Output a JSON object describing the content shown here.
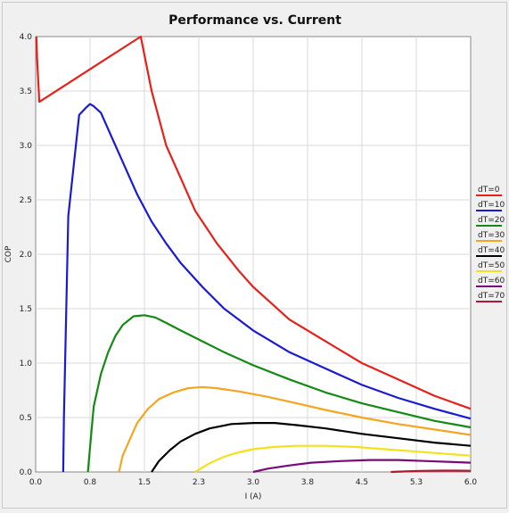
{
  "chart_data": {
    "type": "line",
    "title": "Performance vs. Current",
    "xlabel": "I (A)",
    "ylabel": "COP",
    "xlim": [
      0,
      6.0
    ],
    "ylim": [
      0,
      4.0
    ],
    "x_ticks": [
      "0.0",
      "0.8",
      "1.5",
      "2.3",
      "3.0",
      "3.8",
      "4.5",
      "5.3",
      "6.0"
    ],
    "y_ticks": [
      "0.0",
      "0.5",
      "1.0",
      "1.5",
      "2.0",
      "2.5",
      "3.0",
      "3.5",
      "4.0"
    ],
    "grid": true,
    "legend_position": "right",
    "series": [
      {
        "name": "dT=0",
        "color": "#e8201a",
        "points": [
          [
            0.01,
            4.0
          ],
          [
            0.02,
            3.8
          ],
          [
            0.05,
            3.4
          ],
          [
            1.45,
            4.0
          ],
          [
            1.6,
            3.5
          ],
          [
            1.8,
            3.0
          ],
          [
            2.0,
            2.7
          ],
          [
            2.2,
            2.4
          ],
          [
            2.5,
            2.1
          ],
          [
            2.8,
            1.85
          ],
          [
            3.0,
            1.7
          ],
          [
            3.5,
            1.4
          ],
          [
            4.0,
            1.2
          ],
          [
            4.5,
            1.0
          ],
          [
            5.0,
            0.85
          ],
          [
            5.5,
            0.7
          ],
          [
            6.0,
            0.58
          ]
        ]
      },
      {
        "name": "dT=10",
        "color": "#1a1ad4",
        "points": [
          [
            0.38,
            0.0
          ],
          [
            0.39,
            0.5
          ],
          [
            0.4,
            0.8
          ],
          [
            0.45,
            2.35
          ],
          [
            0.6,
            3.28
          ],
          [
            0.7,
            3.35
          ],
          [
            0.75,
            3.38
          ],
          [
            0.8,
            3.36
          ],
          [
            0.9,
            3.3
          ],
          [
            1.0,
            3.15
          ],
          [
            1.2,
            2.85
          ],
          [
            1.4,
            2.55
          ],
          [
            1.6,
            2.3
          ],
          [
            1.8,
            2.1
          ],
          [
            2.0,
            1.92
          ],
          [
            2.3,
            1.7
          ],
          [
            2.6,
            1.5
          ],
          [
            3.0,
            1.3
          ],
          [
            3.5,
            1.1
          ],
          [
            4.0,
            0.95
          ],
          [
            4.5,
            0.8
          ],
          [
            5.0,
            0.68
          ],
          [
            5.5,
            0.58
          ],
          [
            6.0,
            0.49
          ]
        ]
      },
      {
        "name": "dT=20",
        "color": "#138a13",
        "points": [
          [
            0.72,
            0.0
          ],
          [
            0.76,
            0.3
          ],
          [
            0.8,
            0.6
          ],
          [
            0.9,
            0.9
          ],
          [
            1.0,
            1.1
          ],
          [
            1.1,
            1.25
          ],
          [
            1.2,
            1.35
          ],
          [
            1.35,
            1.43
          ],
          [
            1.5,
            1.44
          ],
          [
            1.65,
            1.42
          ],
          [
            1.8,
            1.37
          ],
          [
            2.0,
            1.3
          ],
          [
            2.3,
            1.2
          ],
          [
            2.6,
            1.1
          ],
          [
            3.0,
            0.98
          ],
          [
            3.5,
            0.85
          ],
          [
            4.0,
            0.73
          ],
          [
            4.5,
            0.63
          ],
          [
            5.0,
            0.55
          ],
          [
            5.5,
            0.47
          ],
          [
            6.0,
            0.41
          ]
        ]
      },
      {
        "name": "dT=30",
        "color": "#f5a51f",
        "points": [
          [
            1.15,
            0.0
          ],
          [
            1.2,
            0.15
          ],
          [
            1.3,
            0.3
          ],
          [
            1.4,
            0.45
          ],
          [
            1.55,
            0.58
          ],
          [
            1.7,
            0.67
          ],
          [
            1.9,
            0.73
          ],
          [
            2.1,
            0.77
          ],
          [
            2.3,
            0.78
          ],
          [
            2.5,
            0.77
          ],
          [
            2.8,
            0.74
          ],
          [
            3.2,
            0.69
          ],
          [
            3.6,
            0.63
          ],
          [
            4.0,
            0.57
          ],
          [
            4.5,
            0.5
          ],
          [
            5.0,
            0.44
          ],
          [
            5.5,
            0.39
          ],
          [
            6.0,
            0.34
          ]
        ]
      },
      {
        "name": "dT=40",
        "color": "#000000",
        "points": [
          [
            1.6,
            0.0
          ],
          [
            1.7,
            0.1
          ],
          [
            1.85,
            0.2
          ],
          [
            2.0,
            0.28
          ],
          [
            2.2,
            0.35
          ],
          [
            2.4,
            0.4
          ],
          [
            2.7,
            0.44
          ],
          [
            3.0,
            0.45
          ],
          [
            3.3,
            0.45
          ],
          [
            3.6,
            0.43
          ],
          [
            4.0,
            0.4
          ],
          [
            4.5,
            0.35
          ],
          [
            5.0,
            0.31
          ],
          [
            5.5,
            0.27
          ],
          [
            6.0,
            0.24
          ]
        ]
      },
      {
        "name": "dT=50",
        "color": "#f2e21c",
        "points": [
          [
            2.2,
            0.0
          ],
          [
            2.4,
            0.08
          ],
          [
            2.6,
            0.14
          ],
          [
            2.8,
            0.18
          ],
          [
            3.0,
            0.21
          ],
          [
            3.3,
            0.23
          ],
          [
            3.6,
            0.24
          ],
          [
            4.0,
            0.24
          ],
          [
            4.4,
            0.23
          ],
          [
            4.8,
            0.21
          ],
          [
            5.2,
            0.19
          ],
          [
            5.6,
            0.17
          ],
          [
            6.0,
            0.15
          ]
        ]
      },
      {
        "name": "dT=60",
        "color": "#7a0a7a",
        "points": [
          [
            3.0,
            0.0
          ],
          [
            3.2,
            0.03
          ],
          [
            3.5,
            0.06
          ],
          [
            3.8,
            0.085
          ],
          [
            4.2,
            0.1
          ],
          [
            4.6,
            0.11
          ],
          [
            5.0,
            0.11
          ],
          [
            5.4,
            0.1
          ],
          [
            5.8,
            0.09
          ],
          [
            6.0,
            0.085
          ]
        ]
      },
      {
        "name": "dT=70",
        "color": "#b0182f",
        "points": [
          [
            4.9,
            0.0
          ],
          [
            5.1,
            0.005
          ],
          [
            5.3,
            0.01
          ],
          [
            5.6,
            0.012
          ],
          [
            5.8,
            0.012
          ],
          [
            6.0,
            0.011
          ]
        ]
      }
    ]
  }
}
